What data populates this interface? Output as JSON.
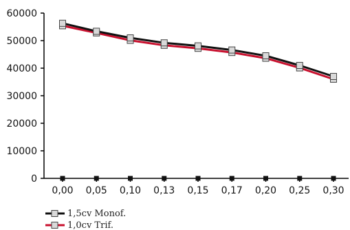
{
  "chart_data": {
    "type": "line",
    "title": "",
    "xlabel": "",
    "ylabel": "",
    "categories": [
      "0,00",
      "0,05",
      "0,10",
      "0,13",
      "0,15",
      "0,17",
      "0,20",
      "0,25",
      "0,30"
    ],
    "y_ticks": [
      0,
      10000,
      20000,
      30000,
      40000,
      50000,
      60000
    ],
    "ylim": [
      0,
      60000
    ],
    "grid": false,
    "legend_position": "bottom-left",
    "series": [
      {
        "name": "1,5cv Monof.",
        "color": "#111111",
        "marker": "square",
        "values": [
          56300,
          53400,
          51000,
          49200,
          48100,
          46600,
          44500,
          41000,
          37000
        ]
      },
      {
        "name": "1,0cv Trif.",
        "color": "#c8102e",
        "marker": "square",
        "values": [
          55400,
          52800,
          50100,
          48300,
          47200,
          45700,
          43600,
          40100,
          36000
        ]
      }
    ],
    "baseline_markers": {
      "color": "#111111",
      "values": [
        0,
        0,
        0,
        0,
        0,
        0,
        0,
        0,
        0
      ]
    }
  }
}
